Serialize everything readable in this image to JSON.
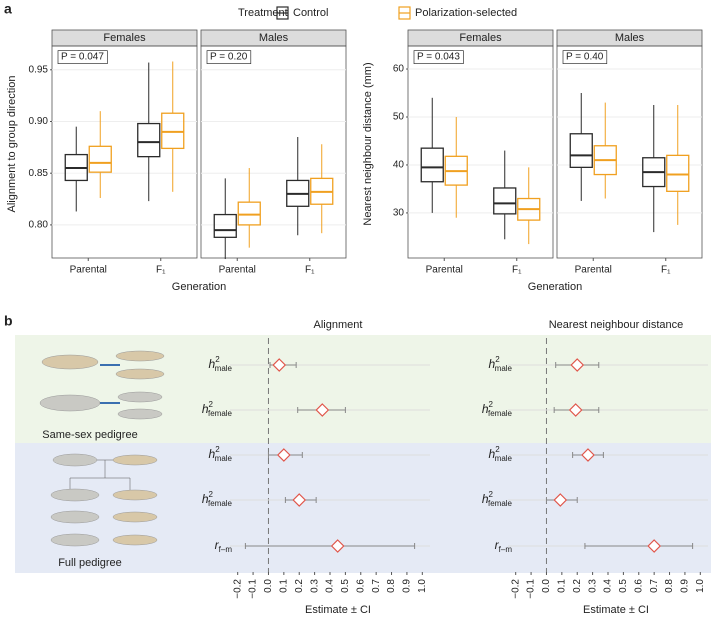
{
  "panel_labels": [
    "a",
    "b"
  ],
  "legend": {
    "title": "Treatment",
    "series": [
      {
        "name": "Control",
        "color": "#2b2b2b"
      },
      {
        "name": "Polarization-selected",
        "color": "#f0a020"
      }
    ]
  },
  "pedigrees": [
    "Same-sex pedigree",
    "Full pedigree"
  ],
  "chart_data": [
    {
      "type": "box",
      "ylabel": "Alignment to group direction",
      "xlabel": "Generation",
      "ylim": [
        0.768,
        0.973
      ],
      "yticks": [
        {
          "value": 0.8,
          "label": "0.80"
        },
        0.85,
        {
          "value": 0.9,
          "label": "0.90"
        },
        0.95
      ],
      "facets": [
        {
          "title": "Females",
          "annotation": "P = 0.047",
          "categories": [
            "Parental",
            "F₁"
          ],
          "groups": [
            {
              "low": [
                0.813,
                0.823
              ],
              "q1": [
                0.843,
                0.866
              ],
              "median": [
                0.855,
                0.88
              ],
              "q3": [
                0.868,
                0.898
              ],
              "high": [
                0.895,
                0.957
              ]
            },
            {
              "low": [
                0.826,
                0.832
              ],
              "q1": [
                0.851,
                0.874
              ],
              "median": [
                0.86,
                0.89
              ],
              "q3": [
                0.876,
                0.908
              ],
              "high": [
                0.91,
                0.958
              ]
            }
          ]
        },
        {
          "title": "Males",
          "annotation": "P = 0.20",
          "categories": [
            "Parental",
            "F₁"
          ],
          "groups": [
            {
              "low": [
                0.767,
                0.79
              ],
              "q1": [
                0.788,
                0.818
              ],
              "median": [
                0.795,
                0.83
              ],
              "q3": [
                0.81,
                0.843
              ],
              "high": [
                0.845,
                0.885
              ]
            },
            {
              "low": [
                0.778,
                0.792
              ],
              "q1": [
                0.8,
                0.82
              ],
              "median": [
                0.81,
                0.832
              ],
              "q3": [
                0.822,
                0.845
              ],
              "high": [
                0.855,
                0.878
              ]
            }
          ]
        }
      ]
    },
    {
      "type": "box",
      "ylabel": "Nearest neighbour distance (mm)",
      "xlabel": "Generation",
      "ylim": [
        20.6,
        64.8
      ],
      "yticks": [
        30,
        40,
        50,
        60
      ],
      "facets": [
        {
          "title": "Females",
          "annotation": "P = 0.043",
          "categories": [
            "Parental",
            "F₁"
          ],
          "groups": [
            {
              "low": [
                30,
                24.5
              ],
              "q1": [
                36.5,
                29.8
              ],
              "median": [
                39.5,
                32
              ],
              "q3": [
                43.5,
                35.2
              ],
              "high": [
                54,
                43
              ]
            },
            {
              "low": [
                29,
                23.5
              ],
              "q1": [
                35.8,
                28.5
              ],
              "median": [
                38.7,
                30.8
              ],
              "q3": [
                41.8,
                33
              ],
              "high": [
                50,
                39.5
              ]
            }
          ]
        },
        {
          "title": "Males",
          "annotation": "P = 0.40",
          "categories": [
            "Parental",
            "F₁"
          ],
          "groups": [
            {
              "low": [
                32.5,
                26
              ],
              "q1": [
                39.5,
                35.5
              ],
              "median": [
                42,
                38.5
              ],
              "q3": [
                46.5,
                41.5
              ],
              "high": [
                55,
                52.5
              ]
            },
            {
              "low": [
                33,
                27.5
              ],
              "q1": [
                38,
                34.5
              ],
              "median": [
                41,
                38
              ],
              "q3": [
                44,
                42
              ],
              "high": [
                53,
                52.5
              ]
            }
          ]
        }
      ]
    },
    {
      "type": "forest",
      "title": "Alignment",
      "xlabel": "Estimate ± CI",
      "color": "#e0554a",
      "xlim": [
        -0.25,
        1.05
      ],
      "xticks": [
        {
          "value": -0.2,
          "label": "−0.2"
        },
        {
          "value": -0.1,
          "label": "−0.1"
        },
        {
          "value": 0,
          "label": "0.0"
        },
        0.1,
        0.2,
        0.3,
        0.4,
        0.5,
        0.6,
        0.7,
        0.8,
        0.9,
        {
          "value": 1,
          "label": "1.0"
        }
      ],
      "rows": [
        {
          "symbol": "h",
          "sup": "2",
          "sub": "male"
        },
        {
          "symbol": "h",
          "sup": "2",
          "sub": "female"
        },
        {
          "symbol": "h",
          "sup": "2",
          "sub": "male"
        },
        {
          "symbol": "h",
          "sup": "2",
          "sub": "female"
        },
        {
          "symbol": "r",
          "sub": "f–m"
        }
      ],
      "values": [
        0.07,
        0.35,
        0.1,
        0.2,
        0.45
      ],
      "lower": [
        0.01,
        0.19,
        0.0,
        0.11,
        -0.15
      ],
      "upper": [
        0.18,
        0.5,
        0.22,
        0.31,
        0.95
      ]
    },
    {
      "type": "forest",
      "title": "Nearest neighbour distance",
      "xlabel": "Estimate ± CI",
      "color": "#e0554a",
      "xlim": [
        -0.25,
        1.05
      ],
      "xticks": [
        {
          "value": -0.2,
          "label": "−0.2"
        },
        {
          "value": -0.1,
          "label": "−0.1"
        },
        {
          "value": 0,
          "label": "0.0"
        },
        0.1,
        0.2,
        0.3,
        0.4,
        0.5,
        0.6,
        0.7,
        0.8,
        0.9,
        {
          "value": 1,
          "label": "1.0"
        }
      ],
      "rows": [
        {
          "symbol": "h",
          "sup": "2",
          "sub": "male"
        },
        {
          "symbol": "h",
          "sup": "2",
          "sub": "female"
        },
        {
          "symbol": "h",
          "sup": "2",
          "sub": "male"
        },
        {
          "symbol": "h",
          "sup": "2",
          "sub": "female"
        },
        {
          "symbol": "r",
          "sub": "f–m"
        }
      ],
      "values": [
        0.2,
        0.19,
        0.27,
        0.09,
        0.7
      ],
      "lower": [
        0.06,
        0.05,
        0.17,
        0.0,
        0.25
      ],
      "upper": [
        0.34,
        0.34,
        0.37,
        0.2,
        0.95
      ]
    }
  ]
}
